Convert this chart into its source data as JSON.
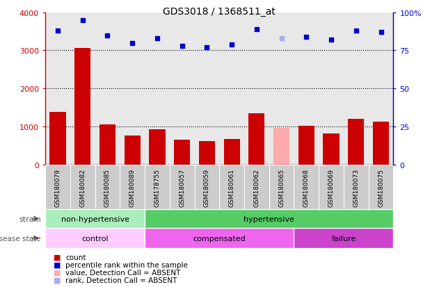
{
  "title": "GDS3018 / 1368511_at",
  "samples": [
    "GSM180079",
    "GSM180082",
    "GSM180085",
    "GSM180089",
    "GSM178755",
    "GSM180057",
    "GSM180059",
    "GSM180061",
    "GSM180062",
    "GSM180065",
    "GSM180068",
    "GSM180069",
    "GSM180073",
    "GSM180075"
  ],
  "bar_values": [
    1380,
    3060,
    1050,
    760,
    930,
    660,
    615,
    680,
    1350,
    960,
    1020,
    820,
    1210,
    1130
  ],
  "bar_colors": [
    "#cc0000",
    "#cc0000",
    "#cc0000",
    "#cc0000",
    "#cc0000",
    "#cc0000",
    "#cc0000",
    "#cc0000",
    "#cc0000",
    "#ffaaaa",
    "#cc0000",
    "#cc0000",
    "#cc0000",
    "#cc0000"
  ],
  "percentile_values": [
    88,
    95,
    85,
    80,
    83,
    78,
    77,
    79,
    89,
    83,
    84,
    82,
    88,
    87
  ],
  "percentile_colors": [
    "#0000cc",
    "#0000cc",
    "#0000cc",
    "#0000cc",
    "#0000cc",
    "#0000cc",
    "#0000cc",
    "#0000cc",
    "#0000cc",
    "#aaaaee",
    "#0000cc",
    "#0000cc",
    "#0000cc",
    "#0000cc"
  ],
  "ylim_left": [
    0,
    4000
  ],
  "ylim_right": [
    0,
    100
  ],
  "yticks_left": [
    0,
    1000,
    2000,
    3000,
    4000
  ],
  "yticks_right": [
    0,
    25,
    50,
    75,
    100
  ],
  "strain_groups": [
    {
      "label": "non-hypertensive",
      "start": 0,
      "end": 4,
      "color": "#aaeebb"
    },
    {
      "label": "hypertensive",
      "start": 4,
      "end": 14,
      "color": "#55cc66"
    }
  ],
  "disease_groups": [
    {
      "label": "control",
      "start": 0,
      "end": 4,
      "color": "#ffccff"
    },
    {
      "label": "compensated",
      "start": 4,
      "end": 10,
      "color": "#ee66ee"
    },
    {
      "label": "failure",
      "start": 10,
      "end": 14,
      "color": "#cc44cc"
    }
  ],
  "legend_items": [
    {
      "label": "count",
      "color": "#cc0000"
    },
    {
      "label": "percentile rank within the sample",
      "color": "#0000cc"
    },
    {
      "label": "value, Detection Call = ABSENT",
      "color": "#ffaaaa"
    },
    {
      "label": "rank, Detection Call = ABSENT",
      "color": "#aaaaee"
    }
  ],
  "strain_label": "strain",
  "disease_label": "disease state",
  "plot_bg": "#dddddd",
  "tick_bg": "#cccccc"
}
